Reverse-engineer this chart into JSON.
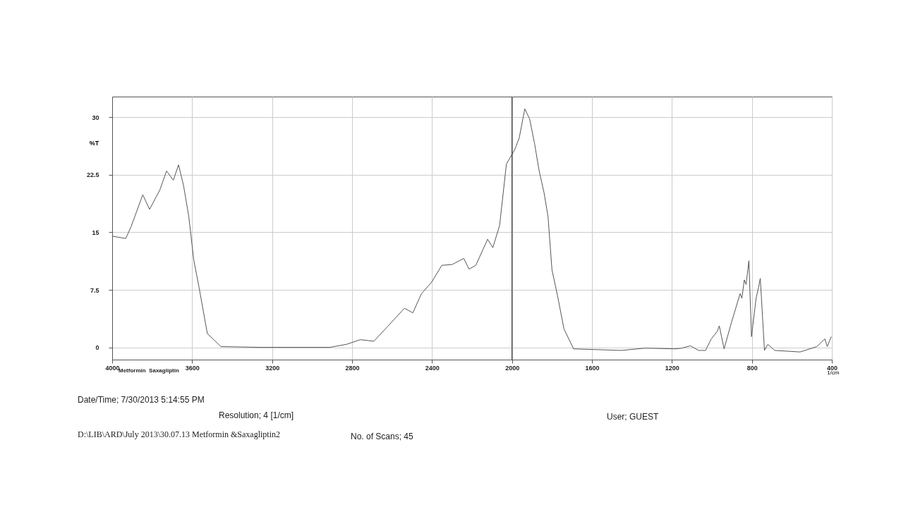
{
  "chart_data": {
    "type": "line",
    "xlabel": "1/cm",
    "ylabel": "%T",
    "x": [
      4000,
      3932,
      3906,
      3847,
      3813,
      3762,
      3728,
      3694,
      3668,
      3643,
      3617,
      3592,
      3566,
      3524,
      3456,
      3252,
      2912,
      2827,
      2759,
      2691,
      2623,
      2538,
      2496,
      2453,
      2402,
      2351,
      2300,
      2241,
      2215,
      2181,
      2122,
      2096,
      2062,
      2028,
      1986,
      1980,
      1964,
      1936,
      1912,
      1888,
      1864,
      1840,
      1820,
      1800,
      1772,
      1740,
      1692,
      1452,
      1332,
      1180,
      1150,
      1108,
      1066,
      1032,
      1003,
      973,
      963,
      939,
      905,
      859,
      850,
      838,
      829,
      815,
      802,
      779,
      766,
      758,
      737,
      720,
      686,
      559,
      475,
      435,
      423,
      403
    ],
    "series": [
      {
        "color": "#555555",
        "values": [
          14.5,
          14.2,
          15.7,
          19.9,
          18,
          20.5,
          23,
          21.8,
          23.8,
          21.1,
          17.1,
          11.4,
          7.9,
          1.8,
          0.1,
          0,
          0,
          0.4,
          1.0,
          0.8,
          2.7,
          5.1,
          4.5,
          7.0,
          8.5,
          10.7,
          10.8,
          11.6,
          10.2,
          10.7,
          14.1,
          13.0,
          15.9,
          23.9,
          25.8,
          26.2,
          27.3,
          31.1,
          29.8,
          26.7,
          23.0,
          20.2,
          17.1,
          10.1,
          6.7,
          2.4,
          -0.2,
          -0.4,
          -0.1,
          -0.2,
          -0.1,
          0.2,
          -0.4,
          -0.4,
          1.1,
          2.1,
          2.8,
          -0.2,
          3.0,
          7.0,
          6.4,
          8.8,
          8.2,
          11.3,
          1.4,
          6.4,
          7.9,
          9.0,
          -0.4,
          0.4,
          -0.4,
          -0.6,
          0.1,
          1.1,
          0.1,
          1.4
        ]
      }
    ],
    "xlim": [
      4000,
      400
    ],
    "xticks": [
      4000,
      3600,
      3200,
      2800,
      2400,
      2000,
      1600,
      1200,
      800,
      400
    ],
    "ylim": [
      -1.6,
      32.7
    ],
    "yticks": [
      0,
      7.5,
      15,
      22.5,
      30
    ],
    "grid": true,
    "legend": false,
    "line_style": "solid",
    "marker": "none",
    "ref_lines": [
      {
        "axis": "x",
        "value": 2000,
        "color": "#333333"
      }
    ],
    "annotations": [
      "Metformin  Saxagliptin",
      "Date/Time; 7/30/2013 5:14:55 PM",
      "Resolution;    4 [1/cm]",
      "User;          GUEST",
      "D:\\LIB\\ARD\\July 2013\\30.07.13 Metformin &Saxagliptin2",
      "No. of Scans; 45"
    ]
  }
}
